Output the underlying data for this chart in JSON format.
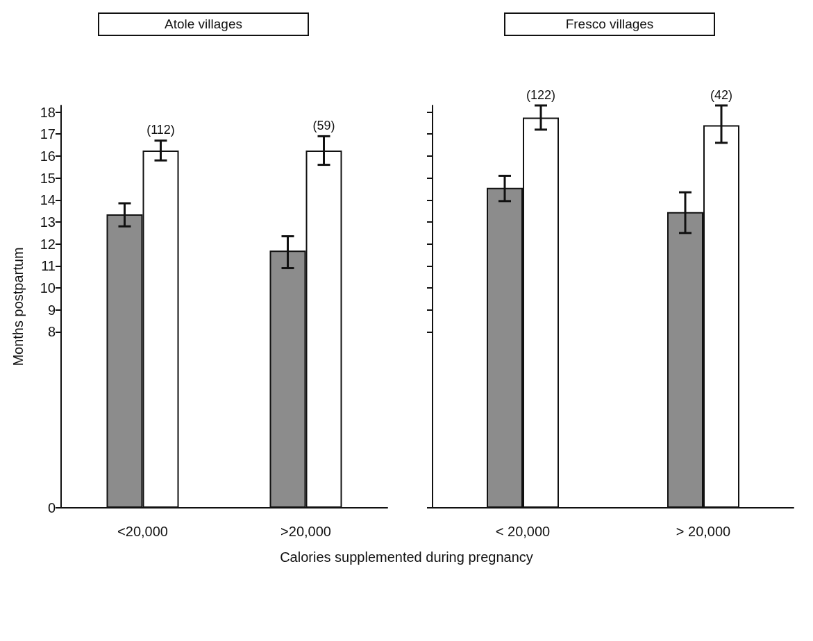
{
  "chart_data": [
    {
      "type": "bar",
      "title": "Atole villages",
      "ylabel": "Months postpartum",
      "xlabel": "Calories supplemented during pregnancy",
      "categories": [
        "<20,000",
        ">20,000"
      ],
      "series": [
        {
          "color": "#8c8c8c",
          "values": [
            13.35,
            11.7
          ],
          "errors": [
            [
              12.8,
              13.85
            ],
            [
              10.9,
              12.35
            ]
          ]
        },
        {
          "color": "#ffffff",
          "values": [
            16.25,
            16.25
          ],
          "errors": [
            [
              15.8,
              16.7
            ],
            [
              15.6,
              16.9
            ]
          ]
        }
      ],
      "ylim": [
        0,
        18.3
      ],
      "yticks": [
        0,
        8,
        9,
        10,
        11,
        12,
        13,
        14,
        15,
        16,
        17,
        18
      ],
      "annotations": [
        "(112)",
        "(59)"
      ]
    },
    {
      "type": "bar",
      "title": "Fresco villages",
      "categories": [
        "< 20,000",
        "> 20,000"
      ],
      "series": [
        {
          "color": "#8c8c8c",
          "values": [
            14.55,
            13.45
          ],
          "errors": [
            [
              13.95,
              15.1
            ],
            [
              12.5,
              14.35
            ]
          ]
        },
        {
          "color": "#ffffff",
          "values": [
            17.75,
            17.4
          ],
          "errors": [
            [
              17.2,
              18.3
            ],
            [
              16.6,
              18.3
            ]
          ]
        }
      ],
      "ylim": [
        0,
        18.3
      ],
      "yticks": [
        0,
        8,
        9,
        10,
        11,
        12,
        13,
        14,
        15,
        16,
        17,
        18
      ],
      "tick_labels": "x",
      "annotations": [
        "(122)",
        "(42)"
      ]
    }
  ]
}
